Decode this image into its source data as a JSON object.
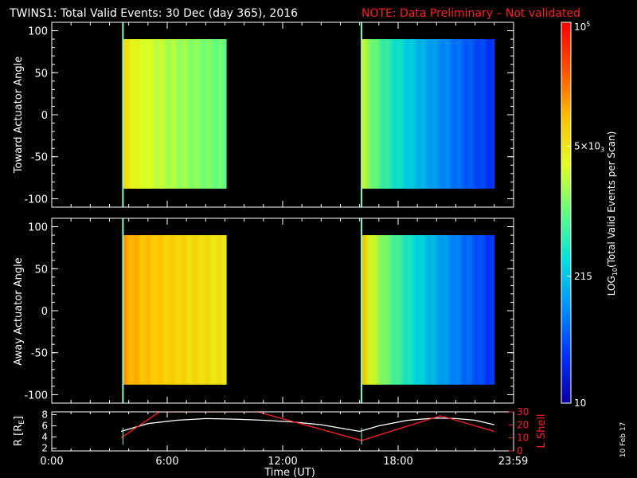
{
  "header": {
    "title": "TWINS1: Total Valid Events: 30 Dec (day 365), 2016",
    "note": "NOTE: Data Preliminary – Not validated"
  },
  "stamp": "10 Feb 17",
  "colors": {
    "background": "#000000",
    "foreground": "#ffffff",
    "note": "#ff2020",
    "l_shell": "#ff2020",
    "r_earth": "#ffffff",
    "marker": "#7fffd4"
  },
  "colorbar": {
    "label": "LOG10(Total Valid Events per Scan)",
    "label_main": "LOG",
    "label_sub": "10",
    "label_rest": "(Total Valid Events per Scan)",
    "scale": "log",
    "range": [
      10,
      100000
    ],
    "ticks": [
      {
        "value": 100000,
        "base": "10",
        "sup": "5",
        "sub": ""
      },
      {
        "value": 5000,
        "base": "5×10",
        "sup": "",
        "sub": "3"
      },
      {
        "value": 215,
        "base": "215",
        "sup": "",
        "sub": ""
      },
      {
        "value": 10,
        "base": "10",
        "sup": "",
        "sub": ""
      }
    ],
    "colormap": [
      "#0a00a0",
      "#0030ff",
      "#0090ff",
      "#00e0e0",
      "#60ff80",
      "#e0ff20",
      "#ffc000",
      "#ff5000",
      "#ff0000"
    ]
  },
  "chart_data": [
    {
      "type": "heatmap",
      "ylabel": "Toward Actuator Angle",
      "xlim": [
        0,
        24
      ],
      "ylim": [
        -110,
        110
      ],
      "yticks": [
        -100,
        -50,
        0,
        50,
        100
      ],
      "xticks": [
        0,
        6,
        12,
        18,
        24
      ],
      "data_rows": [
        -88,
        90
      ],
      "blocks": [
        {
          "start": 3.7,
          "end": 9.1,
          "level_start": 3.85,
          "level_end": 3.0
        },
        {
          "start": 16.1,
          "end": 23.0,
          "level_start": 3.6,
          "level_end": 1.5
        }
      ],
      "markers": [
        3.7,
        16.1
      ]
    },
    {
      "type": "heatmap",
      "ylabel": "Away Actuator Angle",
      "xlim": [
        0,
        24
      ],
      "ylim": [
        -110,
        110
      ],
      "yticks": [
        -100,
        -50,
        0,
        50,
        100
      ],
      "xticks": [
        0,
        6,
        12,
        18,
        24
      ],
      "data_rows": [
        -88,
        90
      ],
      "blocks": [
        {
          "start": 3.7,
          "end": 9.1,
          "level_start": 4.2,
          "level_end": 3.7
        },
        {
          "start": 16.1,
          "end": 23.0,
          "level_start": 4.1,
          "level_end": 1.5
        }
      ],
      "markers": [
        3.7,
        16.1
      ]
    },
    {
      "type": "line",
      "xlabel": "Time (UT)",
      "ylabel_left": "R [RE]",
      "ylabel_left_main": "R [R",
      "ylabel_left_sub": "E",
      "ylabel_left_end": "]",
      "ylabel_right": "L Shell",
      "xlim": [
        0,
        24
      ],
      "ylim_left": [
        1.5,
        8.5
      ],
      "yticks_left": [
        2,
        4,
        6,
        8
      ],
      "ylim_right": [
        0,
        30
      ],
      "yticks_right": [
        0,
        10,
        20,
        30
      ],
      "xticks": [
        0,
        6,
        12,
        18,
        23.98
      ],
      "xtick_labels": [
        "0:00",
        "6:00",
        "12:00",
        "18:00",
        "23:59"
      ],
      "series": [
        {
          "name": "R [RE]",
          "axis": "left",
          "x": [
            3.6,
            5.0,
            6.5,
            8.0,
            9.5,
            11.0,
            12.5,
            14.0,
            16.0,
            17.0,
            18.5,
            20.0,
            21.0,
            22.0,
            23.0
          ],
          "y": [
            5.0,
            6.4,
            7.0,
            7.3,
            7.2,
            7.0,
            6.7,
            6.2,
            5.0,
            6.0,
            7.0,
            7.4,
            7.3,
            7.0,
            6.2
          ]
        },
        {
          "name": "L Shell",
          "axis": "right",
          "x": [
            3.6,
            5.6,
            10.7,
            16.1,
            20.2,
            23.0
          ],
          "y": [
            10,
            30,
            30,
            8,
            27,
            15
          ]
        }
      ],
      "markers": [
        3.7,
        16.1
      ]
    }
  ]
}
